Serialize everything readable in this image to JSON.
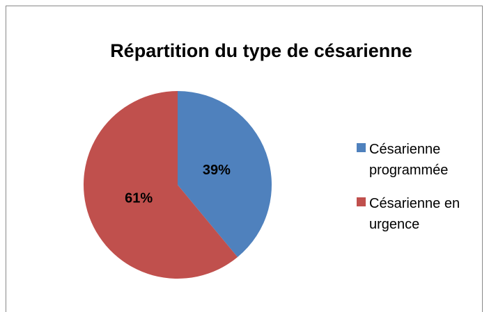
{
  "chart_data": {
    "type": "pie",
    "title": "Répartition du type de césarienne",
    "categories": [
      "Césarienne programmée",
      "Césarienne en urgence"
    ],
    "values": [
      39,
      61
    ],
    "value_labels": [
      "39%",
      "61%"
    ],
    "colors": [
      "#4f81bd",
      "#c0504d"
    ],
    "legend": "right"
  }
}
